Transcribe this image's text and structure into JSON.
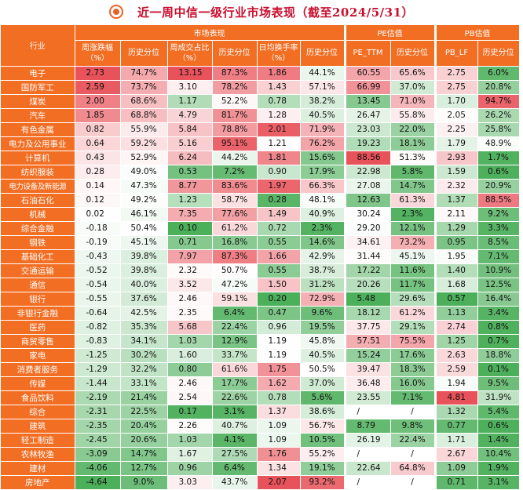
{
  "title": "近一周中信一级行业市场表现（截至2024/5/31）",
  "header": {
    "industry": "行业",
    "group_market": "市场表现",
    "group_pe": "PE估值",
    "group_pb": "PB估值",
    "columns": [
      "周涨跌幅\n（%）",
      "历史分位",
      "周成交占比\n（%）",
      "历史分位",
      "日均换手率\n（%）",
      "历史分位",
      "PE_TTM",
      "历史分位",
      "PB_LF",
      "历史分位"
    ]
  },
  "colors": {
    "header_bg": "#f26e23",
    "title_red": "#c8102e",
    "high_red": "#e8525a",
    "low_green": "#4caf5a"
  },
  "rows": [
    {
      "name": "电子",
      "chg": "2.73",
      "chg_pct": "74.7%",
      "turn_share": "13.15",
      "share_pct": "87.3%",
      "turnover": "1.86",
      "turnover_pct": "44.1%",
      "pe": "60.55",
      "pe_pct": "65.6%",
      "pb": "2.75",
      "pb_pct": "6.0%"
    },
    {
      "name": "国防军工",
      "chg": "2.59",
      "chg_pct": "73.7%",
      "turn_share": "3.10",
      "share_pct": "78.2%",
      "turnover": "1.43",
      "turnover_pct": "57.1%",
      "pe": "66.99",
      "pe_pct": "37.0%",
      "pb": "2.75",
      "pb_pct": "20.8%"
    },
    {
      "name": "煤炭",
      "chg": "2.00",
      "chg_pct": "68.6%",
      "turn_share": "1.17",
      "share_pct": "52.2%",
      "turnover": "0.78",
      "turnover_pct": "38.2%",
      "pe": "13.45",
      "pe_pct": "71.0%",
      "pb": "1.70",
      "pb_pct": "94.7%"
    },
    {
      "name": "汽车",
      "chg": "1.85",
      "chg_pct": "68.8%",
      "turn_share": "4.79",
      "share_pct": "81.7%",
      "turnover": "1.28",
      "turnover_pct": "40.5%",
      "pe": "26.47",
      "pe_pct": "55.8%",
      "pb": "2.05",
      "pb_pct": "26.2%"
    },
    {
      "name": "有色金属",
      "chg": "0.82",
      "chg_pct": "55.9%",
      "turn_share": "5.84",
      "share_pct": "78.8%",
      "turnover": "2.01",
      "turnover_pct": "71.9%",
      "pe": "23.03",
      "pe_pct": "22.0%",
      "pb": "2.25",
      "pb_pct": "25.8%"
    },
    {
      "name": "电力及公用事业",
      "chg": "0.64",
      "chg_pct": "59.2%",
      "turn_share": "5.16",
      "share_pct": "95.1%",
      "turnover": "1.21",
      "turnover_pct": "76.2%",
      "pe": "19.23",
      "pe_pct": "18.1%",
      "pb": "1.79",
      "pb_pct": "48.9%"
    },
    {
      "name": "计算机",
      "chg": "0.43",
      "chg_pct": "52.9%",
      "turn_share": "6.24",
      "share_pct": "44.2%",
      "turnover": "1.81",
      "turnover_pct": "15.6%",
      "pe": "88.56",
      "pe_pct": "51.3%",
      "pb": "2.93",
      "pb_pct": "1.7%"
    },
    {
      "name": "纺织服装",
      "chg": "0.28",
      "chg_pct": "49.0%",
      "turn_share": "0.53",
      "share_pct": "7.2%",
      "turnover": "0.90",
      "turnover_pct": "17.9%",
      "pe": "22.98",
      "pe_pct": "5.8%",
      "pb": "1.59",
      "pb_pct": "0.6%"
    },
    {
      "name": "电力设备及新能源",
      "chg": "0.14",
      "chg_pct": "47.3%",
      "turn_share": "8.77",
      "share_pct": "83.6%",
      "turnover": "1.97",
      "turnover_pct": "66.3%",
      "pe": "27.08",
      "pe_pct": "14.7%",
      "pb": "2.32",
      "pb_pct": "20.9%"
    },
    {
      "name": "石油石化",
      "chg": "0.12",
      "chg_pct": "49.2%",
      "turn_share": "1.23",
      "share_pct": "58.7%",
      "turnover": "0.28",
      "turnover_pct": "48.1%",
      "pe": "12.63",
      "pe_pct": "61.3%",
      "pb": "1.37",
      "pb_pct": "88.5%"
    },
    {
      "name": "机械",
      "chg": "0.02",
      "chg_pct": "46.1%",
      "turn_share": "7.35",
      "share_pct": "77.6%",
      "turnover": "1.49",
      "turnover_pct": "40.9%",
      "pe": "30.24",
      "pe_pct": "2.3%",
      "pb": "2.11",
      "pb_pct": "9.2%"
    },
    {
      "name": "综合金融",
      "chg": "-0.18",
      "chg_pct": "50.4%",
      "turn_share": "0.10",
      "share_pct": "61.2%",
      "turnover": "0.72",
      "turnover_pct": "2.3%",
      "pe": "29.20",
      "pe_pct": "12.1%",
      "pb": "1.29",
      "pb_pct": "3.3%"
    },
    {
      "name": "钢铁",
      "chg": "-0.19",
      "chg_pct": "45.1%",
      "turn_share": "0.71",
      "share_pct": "16.8%",
      "turnover": "0.55",
      "turnover_pct": "14.6%",
      "pe": "34.61",
      "pe_pct": "73.2%",
      "pb": "0.95",
      "pb_pct": "8.5%"
    },
    {
      "name": "基础化工",
      "chg": "-0.43",
      "chg_pct": "39.8%",
      "turn_share": "7.97",
      "share_pct": "87.3%",
      "turnover": "1.66",
      "turnover_pct": "42.9%",
      "pe": "31.44",
      "pe_pct": "45.1%",
      "pb": "1.95",
      "pb_pct": "7.1%"
    },
    {
      "name": "交通运输",
      "chg": "-0.52",
      "chg_pct": "39.8%",
      "turn_share": "2.32",
      "share_pct": "50.7%",
      "turnover": "0.55",
      "turnover_pct": "38.7%",
      "pe": "17.22",
      "pe_pct": "11.6%",
      "pb": "1.40",
      "pb_pct": "10.9%"
    },
    {
      "name": "通信",
      "chg": "-0.54",
      "chg_pct": "40.0%",
      "turn_share": "3.52",
      "share_pct": "47.2%",
      "turnover": "1.50",
      "turnover_pct": "31.2%",
      "pe": "20.26",
      "pe_pct": "11.7%",
      "pb": "1.68",
      "pb_pct": "12.5%"
    },
    {
      "name": "银行",
      "chg": "-0.55",
      "chg_pct": "37.6%",
      "turn_share": "2.46",
      "share_pct": "59.1%",
      "turnover": "0.20",
      "turnover_pct": "72.9%",
      "pe": "5.48",
      "pe_pct": "29.6%",
      "pb": "0.57",
      "pb_pct": "16.4%"
    },
    {
      "name": "非银行金融",
      "chg": "-0.64",
      "chg_pct": "42.5%",
      "turn_share": "2.35",
      "share_pct": "6.4%",
      "turnover": "0.47",
      "turnover_pct": "9.6%",
      "pe": "18.12",
      "pe_pct": "61.2%",
      "pb": "1.13",
      "pb_pct": "3.4%"
    },
    {
      "name": "医药",
      "chg": "-0.82",
      "chg_pct": "35.3%",
      "turn_share": "5.68",
      "share_pct": "22.4%",
      "turnover": "0.96",
      "turnover_pct": "19.5%",
      "pe": "37.75",
      "pe_pct": "29.1%",
      "pb": "2.74",
      "pb_pct": "0.8%"
    },
    {
      "name": "商贸零售",
      "chg": "-0.83",
      "chg_pct": "34.1%",
      "turn_share": "1.03",
      "share_pct": "12.9%",
      "turnover": "1.19",
      "turnover_pct": "45.8%",
      "pe": "57.51",
      "pe_pct": "75.5%",
      "pb": "1.25",
      "pb_pct": "0.7%"
    },
    {
      "name": "家电",
      "chg": "-1.25",
      "chg_pct": "30.2%",
      "turn_share": "1.60",
      "share_pct": "33.7%",
      "turnover": "1.19",
      "turnover_pct": "40.5%",
      "pe": "15.24",
      "pe_pct": "17.6%",
      "pb": "2.63",
      "pb_pct": "18.8%"
    },
    {
      "name": "消费者服务",
      "chg": "-1.29",
      "chg_pct": "32.2%",
      "turn_share": "0.80",
      "share_pct": "61.6%",
      "turnover": "1.75",
      "turnover_pct": "50.5%",
      "pe": "39.47",
      "pe_pct": "18.3%",
      "pb": "2.59",
      "pb_pct": "0.1%"
    },
    {
      "name": "传媒",
      "chg": "-1.44",
      "chg_pct": "33.1%",
      "turn_share": "2.46",
      "share_pct": "17.7%",
      "turnover": "1.62",
      "turnover_pct": "37.0%",
      "pe": "36.48",
      "pe_pct": "16.0%",
      "pb": "1.94",
      "pb_pct": "9.5%"
    },
    {
      "name": "食品饮料",
      "chg": "-2.19",
      "chg_pct": "21.4%",
      "turn_share": "2.54",
      "share_pct": "22.6%",
      "turnover": "0.78",
      "turnover_pct": "5.6%",
      "pe": "23.55",
      "pe_pct": "7.1%",
      "pb": "4.81",
      "pb_pct": "31.9%"
    },
    {
      "name": "综合",
      "chg": "-2.31",
      "chg_pct": "22.5%",
      "turn_share": "0.17",
      "share_pct": "3.1%",
      "turnover": "1.37",
      "turnover_pct": "38.6%",
      "pe": "/",
      "pe_pct": "/",
      "pb": "1.32",
      "pb_pct": "5.4%"
    },
    {
      "name": "建筑",
      "chg": "-2.35",
      "chg_pct": "20.4%",
      "turn_share": "2.26",
      "share_pct": "40.7%",
      "turnover": "1.09",
      "turnover_pct": "56.7%",
      "pe": "8.79",
      "pe_pct": "9.8%",
      "pb": "0.77",
      "pb_pct": "0.6%"
    },
    {
      "name": "轻工制造",
      "chg": "-2.45",
      "chg_pct": "20.6%",
      "turn_share": "1.03",
      "share_pct": "4.1%",
      "turnover": "1.09",
      "turnover_pct": "10.5%",
      "pe": "26.19",
      "pe_pct": "22.4%",
      "pb": "1.71",
      "pb_pct": "1.4%"
    },
    {
      "name": "农林牧渔",
      "chg": "-3.09",
      "chg_pct": "14.7%",
      "turn_share": "1.67",
      "share_pct": "27.5%",
      "turnover": "1.76",
      "turnover_pct": "55.2%",
      "pe": "/",
      "pe_pct": "/",
      "pb": "2.67",
      "pb_pct": "10.4%"
    },
    {
      "name": "建材",
      "chg": "-4.06",
      "chg_pct": "12.7%",
      "turn_share": "0.96",
      "share_pct": "6.4%",
      "turnover": "1.34",
      "turnover_pct": "19.1%",
      "pe": "22.64",
      "pe_pct": "64.8%",
      "pb": "1.09",
      "pb_pct": "1.9%"
    },
    {
      "name": "房地产",
      "chg": "-4.64",
      "chg_pct": "9.0%",
      "turn_share": "3.03",
      "share_pct": "43.7%",
      "turnover": "2.07",
      "turnover_pct": "93.2%",
      "pe": "/",
      "pe_pct": "/",
      "pb": "0.71",
      "pb_pct": "3.1%"
    }
  ]
}
